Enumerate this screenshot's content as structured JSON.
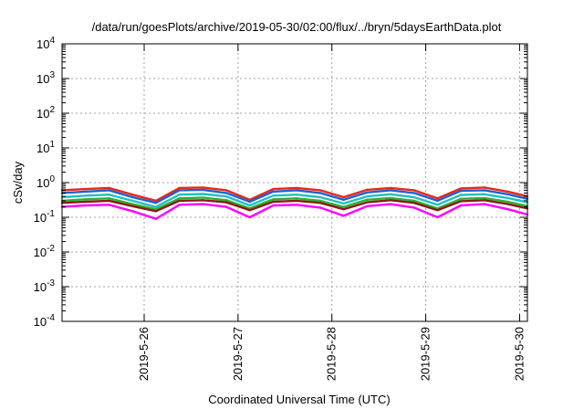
{
  "chart_data": {
    "type": "line",
    "title": "/data/run/goesPlots/archive/2019-05-30/02:00/flux/../bryn/5daysEarthData.plot",
    "xlabel": "Coordinated Universal Time (UTC)",
    "ylabel": "cSv/day",
    "yscale": "log",
    "ylim": [
      0.0001,
      10000
    ],
    "y_ticks": [
      {
        "value": 0.0001,
        "base": "10",
        "exp": "-4"
      },
      {
        "value": 0.001,
        "base": "10",
        "exp": "-3"
      },
      {
        "value": 0.01,
        "base": "10",
        "exp": "-2"
      },
      {
        "value": 0.1,
        "base": "10",
        "exp": "-1"
      },
      {
        "value": 1,
        "base": "10",
        "exp": "0"
      },
      {
        "value": 10,
        "base": "10",
        "exp": "1"
      },
      {
        "value": 100,
        "base": "10",
        "exp": "2"
      },
      {
        "value": 1000,
        "base": "10",
        "exp": "3"
      },
      {
        "value": 10000,
        "base": "10",
        "exp": "4"
      }
    ],
    "xlim": [
      "2019-05-25T03:00",
      "2019-05-30T02:00"
    ],
    "x_ticks": [
      {
        "value": "2019-05-26T00:00",
        "label": "2019-5-26"
      },
      {
        "value": "2019-05-27T00:00",
        "label": "2019-5-27"
      },
      {
        "value": "2019-05-28T00:00",
        "label": "2019-5-28"
      },
      {
        "value": "2019-05-29T00:00",
        "label": "2019-5-29"
      },
      {
        "value": "2019-05-30T00:00",
        "label": "2019-5-30"
      }
    ],
    "grid": true,
    "x": [
      "2019-05-25T03:00",
      "2019-05-25T09:00",
      "2019-05-25T15:00",
      "2019-05-25T21:00",
      "2019-05-26T03:00",
      "2019-05-26T09:00",
      "2019-05-26T15:00",
      "2019-05-26T21:00",
      "2019-05-27T03:00",
      "2019-05-27T09:00",
      "2019-05-27T15:00",
      "2019-05-27T21:00",
      "2019-05-28T03:00",
      "2019-05-28T09:00",
      "2019-05-28T15:00",
      "2019-05-28T21:00",
      "2019-05-29T03:00",
      "2019-05-29T09:00",
      "2019-05-29T15:00",
      "2019-05-29T21:00",
      "2019-05-30T02:00"
    ],
    "series": [
      {
        "color": "#e8261c",
        "values": [
          0.6,
          0.65,
          0.7,
          0.45,
          0.3,
          0.7,
          0.72,
          0.6,
          0.32,
          0.65,
          0.7,
          0.6,
          0.38,
          0.62,
          0.7,
          0.6,
          0.35,
          0.68,
          0.72,
          0.55,
          0.4
        ]
      },
      {
        "color": "#2060d0",
        "values": [
          0.5,
          0.55,
          0.6,
          0.38,
          0.26,
          0.6,
          0.62,
          0.5,
          0.28,
          0.55,
          0.6,
          0.5,
          0.32,
          0.52,
          0.6,
          0.5,
          0.3,
          0.58,
          0.6,
          0.46,
          0.34
        ]
      },
      {
        "color": "#20c0c0",
        "values": [
          0.38,
          0.42,
          0.45,
          0.3,
          0.2,
          0.45,
          0.47,
          0.4,
          0.22,
          0.42,
          0.45,
          0.38,
          0.25,
          0.4,
          0.46,
          0.38,
          0.23,
          0.44,
          0.46,
          0.36,
          0.27
        ]
      },
      {
        "color": "#30b030",
        "values": [
          0.3,
          0.33,
          0.35,
          0.24,
          0.17,
          0.35,
          0.37,
          0.31,
          0.18,
          0.33,
          0.35,
          0.3,
          0.2,
          0.32,
          0.36,
          0.3,
          0.18,
          0.34,
          0.36,
          0.28,
          0.21
        ]
      },
      {
        "color": "#8b1a1a",
        "values": [
          0.26,
          0.28,
          0.3,
          0.21,
          0.15,
          0.3,
          0.31,
          0.27,
          0.16,
          0.28,
          0.3,
          0.26,
          0.17,
          0.27,
          0.31,
          0.26,
          0.16,
          0.29,
          0.31,
          0.24,
          0.18
        ]
      },
      {
        "color": "#ff00ff",
        "values": [
          0.2,
          0.22,
          0.23,
          0.15,
          0.09,
          0.23,
          0.24,
          0.2,
          0.1,
          0.22,
          0.23,
          0.19,
          0.11,
          0.21,
          0.24,
          0.19,
          0.1,
          0.22,
          0.24,
          0.17,
          0.12
        ]
      }
    ]
  }
}
